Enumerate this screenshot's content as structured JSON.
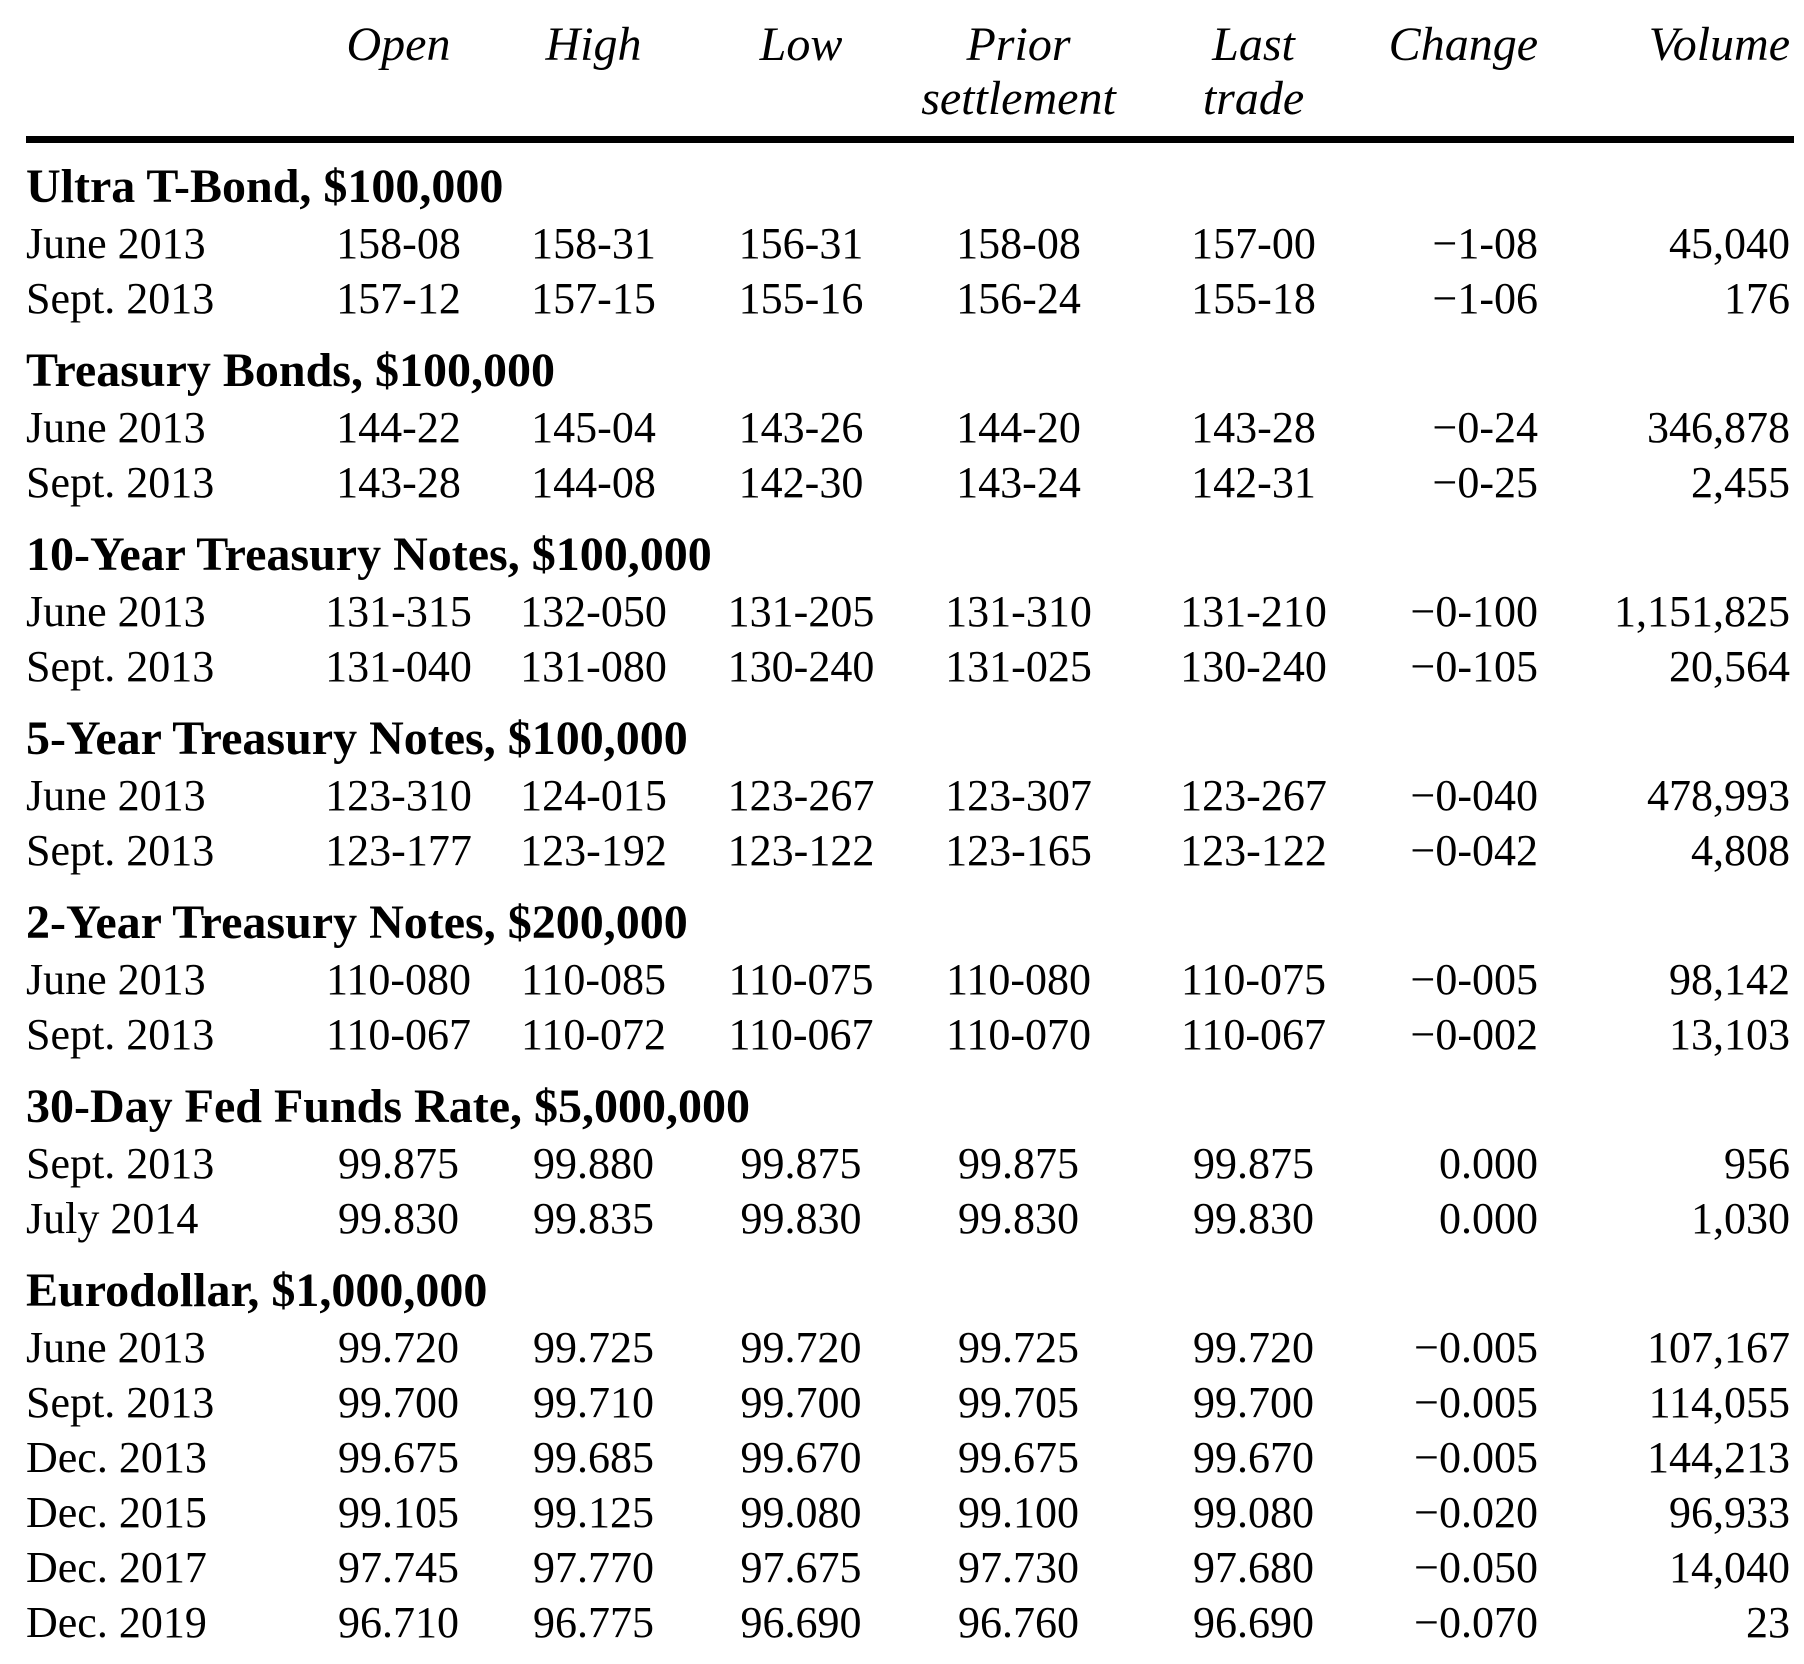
{
  "table": {
    "header": {
      "contract_month": "",
      "open": "Open",
      "high": "High",
      "low": "Low",
      "prior_line1": "Prior",
      "prior_line2": "settlement",
      "last_line1": "Last",
      "last_line2": "trade",
      "change": "Change",
      "volume": "Volume"
    },
    "sections": [
      {
        "title": "Ultra T-Bond, $100,000",
        "rows": [
          {
            "month": "June 2013",
            "open": "158-08",
            "high": "158-31",
            "low": "156-31",
            "prior_settlement": "158-08",
            "last_trade": "157-00",
            "change": "−1-08",
            "volume": "45,040"
          },
          {
            "month": "Sept. 2013",
            "open": "157-12",
            "high": "157-15",
            "low": "155-16",
            "prior_settlement": "156-24",
            "last_trade": "155-18",
            "change": "−1-06",
            "volume": "176"
          }
        ]
      },
      {
        "title": "Treasury Bonds, $100,000",
        "rows": [
          {
            "month": "June 2013",
            "open": "144-22",
            "high": "145-04",
            "low": "143-26",
            "prior_settlement": "144-20",
            "last_trade": "143-28",
            "change": "−0-24",
            "volume": "346,878"
          },
          {
            "month": "Sept. 2013",
            "open": "143-28",
            "high": "144-08",
            "low": "142-30",
            "prior_settlement": "143-24",
            "last_trade": "142-31",
            "change": "−0-25",
            "volume": "2,455"
          }
        ]
      },
      {
        "title": "10-Year Treasury Notes, $100,000",
        "rows": [
          {
            "month": "June 2013",
            "open": "131-315",
            "high": "132-050",
            "low": "131-205",
            "prior_settlement": "131-310",
            "last_trade": "131-210",
            "change": "−0-100",
            "volume": "1,151,825"
          },
          {
            "month": "Sept. 2013",
            "open": "131-040",
            "high": "131-080",
            "low": "130-240",
            "prior_settlement": "131-025",
            "last_trade": "130-240",
            "change": "−0-105",
            "volume": "20,564"
          }
        ]
      },
      {
        "title": "5-Year Treasury Notes, $100,000",
        "rows": [
          {
            "month": "June 2013",
            "open": "123-310",
            "high": "124-015",
            "low": "123-267",
            "prior_settlement": "123-307",
            "last_trade": "123-267",
            "change": "−0-040",
            "volume": "478,993"
          },
          {
            "month": "Sept. 2013",
            "open": "123-177",
            "high": "123-192",
            "low": "123-122",
            "prior_settlement": "123-165",
            "last_trade": "123-122",
            "change": "−0-042",
            "volume": "4,808"
          }
        ]
      },
      {
        "title": "2-Year Treasury Notes, $200,000",
        "rows": [
          {
            "month": "June 2013",
            "open": "110-080",
            "high": "110-085",
            "low": "110-075",
            "prior_settlement": "110-080",
            "last_trade": "110-075",
            "change": "−0-005",
            "volume": "98,142"
          },
          {
            "month": "Sept. 2013",
            "open": "110-067",
            "high": "110-072",
            "low": "110-067",
            "prior_settlement": "110-070",
            "last_trade": "110-067",
            "change": "−0-002",
            "volume": "13,103"
          }
        ]
      },
      {
        "title": "30-Day Fed Funds Rate, $5,000,000",
        "rows": [
          {
            "month": "Sept. 2013",
            "open": "99.875",
            "high": "99.880",
            "low": "99.875",
            "prior_settlement": "99.875",
            "last_trade": "99.875",
            "change": "0.000",
            "volume": "956"
          },
          {
            "month": "July 2014",
            "open": "99.830",
            "high": "99.835",
            "low": "99.830",
            "prior_settlement": "99.830",
            "last_trade": "99.830",
            "change": "0.000",
            "volume": "1,030"
          }
        ]
      },
      {
        "title": "Eurodollar, $1,000,000",
        "rows": [
          {
            "month": "June 2013",
            "open": "99.720",
            "high": "99.725",
            "low": "99.720",
            "prior_settlement": "99.725",
            "last_trade": "99.720",
            "change": "−0.005",
            "volume": "107,167"
          },
          {
            "month": "Sept. 2013",
            "open": "99.700",
            "high": "99.710",
            "low": "99.700",
            "prior_settlement": "99.705",
            "last_trade": "99.700",
            "change": "−0.005",
            "volume": "114,055"
          },
          {
            "month": "Dec. 2013",
            "open": "99.675",
            "high": "99.685",
            "low": "99.670",
            "prior_settlement": "99.675",
            "last_trade": "99.670",
            "change": "−0.005",
            "volume": "144,213"
          },
          {
            "month": "Dec. 2015",
            "open": "99.105",
            "high": "99.125",
            "low": "99.080",
            "prior_settlement": "99.100",
            "last_trade": "99.080",
            "change": "−0.020",
            "volume": "96,933"
          },
          {
            "month": "Dec. 2017",
            "open": "97.745",
            "high": "97.770",
            "low": "97.675",
            "prior_settlement": "97.730",
            "last_trade": "97.680",
            "change": "−0.050",
            "volume": "14,040"
          },
          {
            "month": "Dec. 2019",
            "open": "96.710",
            "high": "96.775",
            "low": "96.690",
            "prior_settlement": "96.760",
            "last_trade": "96.690",
            "change": "−0.070",
            "volume": "23"
          }
        ]
      }
    ]
  }
}
